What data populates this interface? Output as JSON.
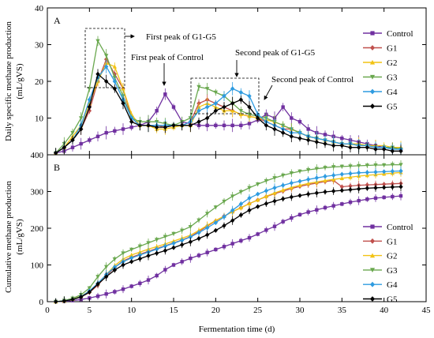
{
  "chart_data": [
    {
      "panel": "A",
      "type": "line",
      "ylabel_line1": "Daily specific methane production",
      "ylabel_line2": "(mL/gVS)",
      "xlim": [
        0,
        45
      ],
      "ylim": [
        0,
        40
      ],
      "xticks": [
        0,
        5,
        10,
        15,
        20,
        25,
        30,
        35,
        40,
        45
      ],
      "yticks": [
        0,
        10,
        20,
        30,
        40
      ],
      "legend_position": "top-right",
      "annotations": [
        "First peak of G1-G5",
        "First peak of Control",
        "Second peak of G1-G5",
        "Second peak of Control"
      ],
      "x": [
        1,
        2,
        3,
        4,
        5,
        6,
        7,
        8,
        9,
        10,
        11,
        12,
        13,
        14,
        15,
        16,
        17,
        18,
        19,
        20,
        21,
        22,
        23,
        24,
        25,
        26,
        27,
        28,
        29,
        30,
        31,
        32,
        33,
        34,
        35,
        36,
        37,
        38,
        39,
        40,
        41,
        42
      ],
      "series": [
        {
          "name": "Control",
          "color": "#7030a0",
          "marker": "square",
          "values": [
            0.5,
            1,
            2,
            3,
            4,
            5,
            6,
            6.5,
            7,
            7.5,
            8,
            9,
            12,
            16.5,
            13,
            9,
            8.5,
            8,
            8,
            8,
            8,
            8,
            8,
            8.5,
            9.5,
            11,
            10,
            13,
            10,
            9,
            7,
            6,
            5.5,
            5,
            4.5,
            4,
            3.5,
            3,
            2.5,
            2,
            2,
            1.5
          ]
        },
        {
          "name": "G1",
          "color": "#c0504d",
          "marker": "diamond",
          "values": [
            0.5,
            2,
            4,
            7,
            12,
            20,
            26,
            22,
            18,
            10,
            8,
            8,
            8,
            7.5,
            8,
            8,
            9,
            14,
            15,
            14,
            13,
            12,
            11,
            10.5,
            10,
            9,
            8,
            7,
            7,
            6,
            5,
            4.5,
            4,
            3.5,
            3,
            3,
            2.5,
            2.5,
            2,
            2,
            2,
            1.5
          ]
        },
        {
          "name": "G2",
          "color": "#f2c314",
          "marker": "triangle-up",
          "values": [
            0.5,
            2,
            5,
            8,
            14,
            20,
            25,
            24,
            18,
            11,
            8,
            8,
            7,
            7,
            7.5,
            8,
            8,
            13,
            14,
            13,
            12,
            12,
            11,
            10.5,
            10,
            9.5,
            9,
            8,
            7,
            6,
            5,
            4.5,
            4,
            3.5,
            3,
            3,
            3,
            2.5,
            2.5,
            2.5,
            2,
            2
          ]
        },
        {
          "name": "G3",
          "color": "#6aa84f",
          "marker": "triangle-down",
          "values": [
            0.5,
            3,
            6,
            10,
            18,
            31,
            27,
            21,
            16,
            10,
            9,
            9,
            9,
            8.5,
            8,
            9,
            10,
            18.5,
            18,
            17,
            16,
            14,
            12,
            11,
            10.5,
            10,
            9,
            8,
            7,
            6,
            5,
            4.5,
            4,
            3.5,
            3,
            3,
            2.5,
            2.5,
            2,
            2,
            2,
            1.5
          ]
        },
        {
          "name": "G4",
          "color": "#2e9be0",
          "marker": "diamond",
          "values": [
            0.5,
            2,
            4,
            8,
            15,
            21,
            24,
            20,
            15,
            10,
            8,
            8,
            8,
            8,
            8,
            8,
            9,
            12,
            13,
            14,
            16,
            18,
            17,
            16,
            11,
            9,
            8,
            7,
            6,
            6,
            5,
            4.5,
            4,
            3.5,
            3,
            3,
            2.5,
            2.5,
            2,
            2,
            1.5,
            1.5
          ]
        },
        {
          "name": "G5",
          "color": "#000000",
          "marker": "diamond",
          "values": [
            0.5,
            2,
            4,
            7,
            13,
            22,
            20,
            18,
            14,
            9,
            8,
            8,
            7.5,
            7.5,
            8,
            8,
            8,
            9,
            10,
            12,
            13,
            14,
            15,
            13,
            10,
            8,
            7,
            6,
            5,
            4.5,
            4,
            3.5,
            3,
            2.5,
            2.5,
            2,
            2,
            2,
            1.5,
            1.5,
            1,
            1
          ]
        }
      ]
    },
    {
      "panel": "B",
      "type": "line",
      "ylabel_line1": "Cumulative methane production",
      "ylabel_line2": "(mL/gVS)",
      "xlabel": "Fermentation time (d)",
      "xlim": [
        0,
        45
      ],
      "ylim": [
        0,
        400
      ],
      "xticks": [
        0,
        5,
        10,
        15,
        20,
        25,
        30,
        35,
        40,
        45
      ],
      "yticks": [
        0,
        100,
        200,
        300,
        400
      ],
      "legend_position": "center-right",
      "x": [
        1,
        2,
        3,
        4,
        5,
        6,
        7,
        8,
        9,
        10,
        11,
        12,
        13,
        14,
        15,
        16,
        17,
        18,
        19,
        20,
        21,
        22,
        23,
        24,
        25,
        26,
        27,
        28,
        29,
        30,
        31,
        32,
        33,
        34,
        35,
        36,
        37,
        38,
        39,
        40,
        41,
        42
      ],
      "series": [
        {
          "name": "Control",
          "color": "#7030a0",
          "marker": "square",
          "values": [
            0,
            1,
            3,
            6,
            10,
            15,
            21,
            27,
            34,
            42,
            50,
            59,
            71,
            87,
            100,
            109,
            118,
            126,
            134,
            142,
            150,
            158,
            166,
            174,
            184,
            195,
            205,
            218,
            228,
            237,
            244,
            250,
            256,
            261,
            266,
            271,
            275,
            279,
            282,
            284,
            286,
            288
          ]
        },
        {
          "name": "G1",
          "color": "#c0504d",
          "marker": "diamond",
          "values": [
            0,
            2,
            6,
            13,
            25,
            45,
            71,
            93,
            111,
            121,
            129,
            137,
            145,
            152,
            160,
            168,
            177,
            191,
            206,
            220,
            233,
            245,
            256,
            267,
            277,
            286,
            294,
            301,
            308,
            314,
            319,
            323,
            327,
            330,
            313,
            315,
            317,
            318,
            319,
            320,
            321,
            322
          ]
        },
        {
          "name": "G2",
          "color": "#f2c314",
          "marker": "triangle-up",
          "values": [
            0,
            2,
            7,
            15,
            29,
            49,
            74,
            98,
            116,
            127,
            135,
            143,
            150,
            157,
            165,
            173,
            181,
            194,
            208,
            221,
            233,
            245,
            256,
            267,
            277,
            287,
            296,
            304,
            311,
            317,
            322,
            326,
            330,
            333,
            336,
            339,
            342,
            344,
            346,
            348,
            350,
            352
          ]
        },
        {
          "name": "G3",
          "color": "#6aa84f",
          "marker": "triangle-down",
          "values": [
            0,
            3,
            9,
            19,
            37,
            68,
            95,
            116,
            132,
            142,
            151,
            160,
            169,
            177,
            185,
            194,
            204,
            222,
            240,
            257,
            273,
            287,
            299,
            310,
            320,
            329,
            337,
            344,
            350,
            355,
            359,
            362,
            365,
            367,
            368,
            369,
            370,
            371,
            372,
            372,
            373,
            373
          ]
        },
        {
          "name": "G4",
          "color": "#2e9be0",
          "marker": "diamond",
          "values": [
            0,
            2,
            6,
            14,
            29,
            50,
            74,
            94,
            109,
            119,
            127,
            135,
            143,
            151,
            159,
            167,
            176,
            188,
            201,
            215,
            231,
            249,
            266,
            282,
            293,
            302,
            310,
            317,
            323,
            328,
            333,
            337,
            341,
            344,
            347,
            349,
            351,
            352,
            353,
            354,
            355,
            356
          ]
        },
        {
          "name": "G5",
          "color": "#000000",
          "marker": "diamond",
          "values": [
            0,
            2,
            6,
            13,
            26,
            48,
            68,
            86,
            100,
            109,
            117,
            125,
            132,
            139,
            147,
            155,
            163,
            172,
            182,
            194,
            207,
            221,
            236,
            249,
            259,
            267,
            274,
            280,
            285,
            289,
            293,
            296,
            299,
            301,
            303,
            305,
            307,
            309,
            310,
            311,
            312,
            313
          ]
        }
      ]
    }
  ]
}
